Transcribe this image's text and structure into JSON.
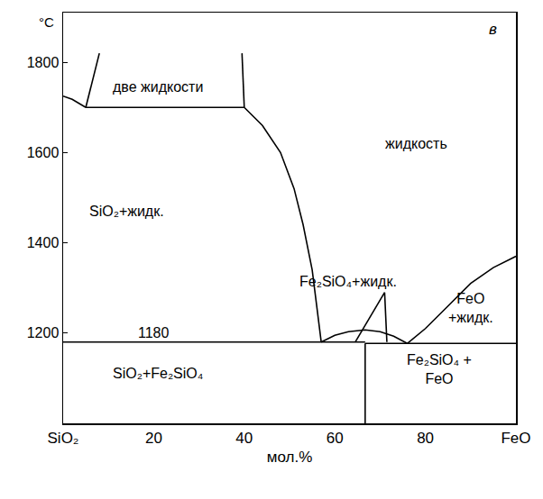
{
  "chart_data": {
    "type": "line",
    "panel_label": "в",
    "x_label": "мол.%",
    "y_label": "°C",
    "xlim": [
      0,
      100
    ],
    "xticks": [
      {
        "value": 0,
        "label": "SiO₂"
      },
      20,
      40,
      60,
      80,
      {
        "value": 100,
        "label": "FeO"
      }
    ],
    "ylim": [
      1000,
      1910
    ],
    "yticks": [
      1200,
      1400,
      1600,
      1800
    ],
    "grid": false,
    "color": "#000000",
    "series": [
      {
        "x": [
          0,
          2,
          5
        ],
        "values": [
          1725,
          1718,
          1700
        ]
      },
      {
        "x": [
          5,
          40
        ],
        "values": [
          1700,
          1700
        ]
      },
      {
        "x": [
          5,
          8
        ],
        "values": [
          1700,
          1820
        ]
      },
      {
        "x": [
          40,
          39.5
        ],
        "values": [
          1700,
          1820
        ]
      },
      {
        "x": [
          40,
          44,
          48,
          51,
          53,
          55,
          56,
          57
        ],
        "values": [
          1700,
          1660,
          1600,
          1520,
          1440,
          1340,
          1260,
          1180
        ]
      },
      {
        "x": [
          0,
          66.7
        ],
        "values": [
          1180,
          1180
        ]
      },
      {
        "x": [
          66.7,
          100
        ],
        "values": [
          1177,
          1177
        ]
      },
      {
        "x": [
          66.7,
          66.7
        ],
        "values": [
          1000,
          1177
        ]
      },
      {
        "x": [
          57,
          60,
          63,
          66.7,
          70,
          73,
          76
        ],
        "values": [
          1180,
          1195,
          1203,
          1207,
          1203,
          1193,
          1177
        ]
      },
      {
        "x": [
          64.5,
          71,
          71.5
        ],
        "values": [
          1180,
          1290,
          1180
        ]
      },
      {
        "x": [
          76,
          80,
          85,
          90,
          95,
          100
        ],
        "values": [
          1177,
          1210,
          1260,
          1310,
          1345,
          1370
        ]
      }
    ],
    "annotations": [
      {
        "text": "две жидкости",
        "x": 21,
        "y": 1745
      },
      {
        "text": "жидкость",
        "x": 78,
        "y": 1620
      },
      {
        "text": "SiO₂+жидк.",
        "x": 14,
        "y": 1470
      },
      {
        "text": "Fe₂SiO₄+жидк.",
        "x": 63,
        "y": 1315
      },
      {
        "text": "FeO\n+жидк.",
        "x": 90,
        "y": 1255
      },
      {
        "text": "1180",
        "x": 20,
        "y": 1200
      },
      {
        "text": "SiO₂+Fe₂SiO₄",
        "x": 21,
        "y": 1110
      },
      {
        "text": "Fe₂SiO₄ +\nFeO",
        "x": 83,
        "y": 1120
      }
    ]
  }
}
